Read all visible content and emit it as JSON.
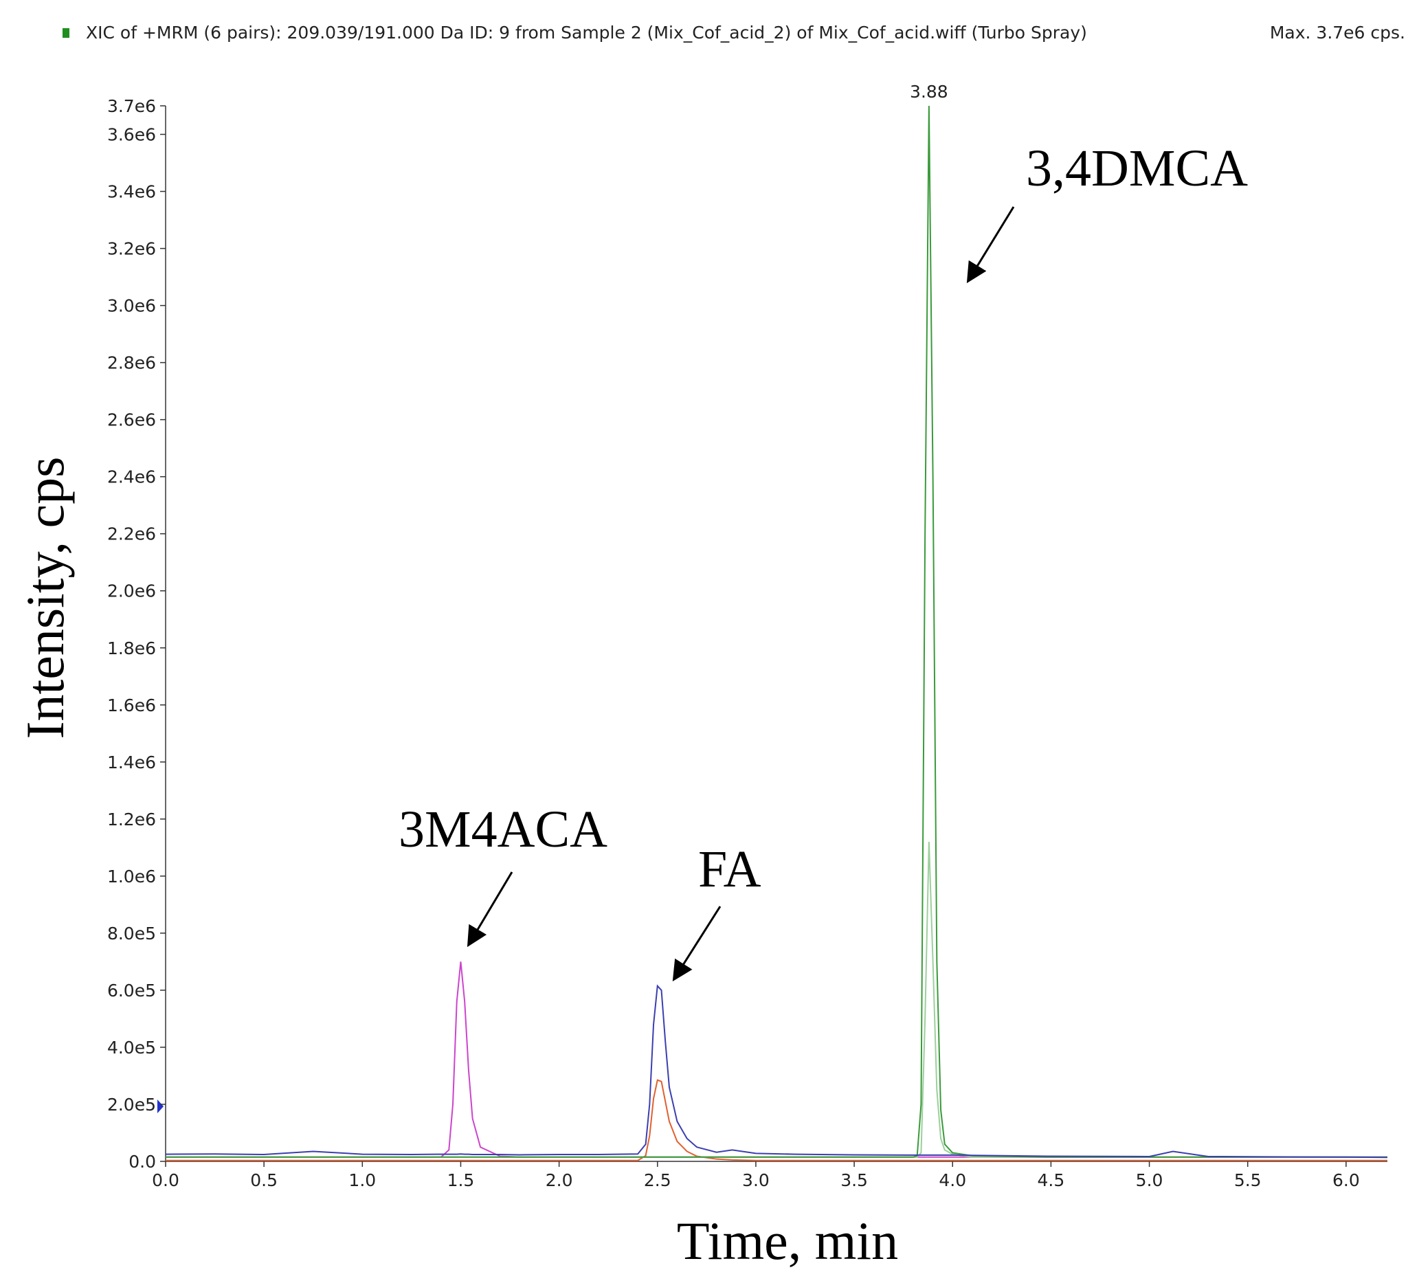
{
  "chart_data": {
    "type": "line",
    "title": "XIC of +MRM (6 pairs): 209.039/191.000 Da ID: 9 from Sample 2 (Mix_Cof_acid_2) of Mix_Cof_acid.wiff (Turbo Spray)",
    "subtitle": "Max. 3.7e6 cps.",
    "x_label": "Time, min",
    "y_label": "Intensity, cps",
    "annotations": [
      "3M4ACA",
      "FA",
      "3,4DMCA"
    ],
    "peak_label": 3.88,
    "x": [
      0,
      0.25,
      0.5,
      0.75,
      1.0,
      1.25,
      1.4,
      1.44,
      1.46,
      1.48,
      1.5,
      1.52,
      1.54,
      1.56,
      1.6,
      1.7,
      1.8,
      2.0,
      2.2,
      2.4,
      2.44,
      2.46,
      2.48,
      2.5,
      2.52,
      2.54,
      2.56,
      2.6,
      2.65,
      2.7,
      2.8,
      2.88,
      3.0,
      3.2,
      3.5,
      3.8,
      3.82,
      3.84,
      3.86,
      3.88,
      3.9,
      3.92,
      3.94,
      3.96,
      4.0,
      4.1,
      4.5,
      5.0,
      5.12,
      5.3,
      5.6,
      6.0,
      6.21
    ],
    "series": [
      {
        "color": "#cc44cc",
        "values": [
          15000,
          15000,
          15000,
          15000,
          15000,
          15000,
          15000,
          40000,
          200000,
          560000,
          700000,
          560000,
          320000,
          150000,
          50000,
          18000,
          15000,
          15000,
          15000,
          15000,
          15000,
          15000,
          15000,
          15000,
          15000,
          15000,
          15000,
          15000,
          15000,
          15000,
          15000,
          15000,
          15000,
          15000,
          15000,
          15000,
          15000,
          15000,
          15000,
          15000,
          15000,
          15000,
          15000,
          15000,
          15000,
          15000,
          15000,
          15000,
          15000,
          15000,
          15000,
          15000,
          15000
        ]
      },
      {
        "color": "#e06030",
        "values": [
          3000,
          3000,
          3000,
          3000,
          3000,
          3000,
          3000,
          3000,
          3000,
          3000,
          3000,
          3000,
          3000,
          3000,
          3000,
          3000,
          3000,
          3000,
          3000,
          3000,
          20000,
          90000,
          220000,
          285000,
          280000,
          210000,
          140000,
          70000,
          35000,
          18000,
          8000,
          5000,
          3000,
          3000,
          3000,
          3000,
          3000,
          3000,
          3000,
          3000,
          3000,
          3000,
          3000,
          3000,
          3000,
          3000,
          3000,
          3000,
          3000,
          3000,
          3000,
          3000,
          3000
        ]
      },
      {
        "color": "#9ccf9c",
        "values": [
          15000,
          15000,
          15000,
          15000,
          15000,
          15000,
          15000,
          15000,
          15000,
          15000,
          15000,
          15000,
          15000,
          15000,
          15000,
          15000,
          15000,
          15000,
          15000,
          15000,
          15000,
          15000,
          15000,
          15000,
          15000,
          15000,
          15000,
          15000,
          15000,
          15000,
          15000,
          15000,
          15000,
          15000,
          15000,
          15000,
          15000,
          30000,
          500000,
          1120000,
          700000,
          250000,
          80000,
          40000,
          25000,
          15000,
          15000,
          15000,
          15000,
          15000,
          15000,
          15000,
          15000
        ]
      },
      {
        "color": "#3a9a3a",
        "values": [
          15000,
          15000,
          15000,
          15000,
          15000,
          15000,
          15000,
          15000,
          15000,
          15000,
          15000,
          15000,
          15000,
          15000,
          15000,
          15000,
          15000,
          15000,
          15000,
          15000,
          15000,
          15000,
          15000,
          15000,
          15000,
          15000,
          15000,
          15000,
          15000,
          15000,
          15000,
          15000,
          15000,
          15000,
          15000,
          15000,
          20000,
          200000,
          2200000,
          3700000,
          2400000,
          700000,
          180000,
          60000,
          30000,
          20000,
          15000,
          15000,
          15000,
          15000,
          15000,
          15000,
          15000
        ]
      },
      {
        "color": "#3a3fb0",
        "values": [
          25000,
          26000,
          24000,
          35000,
          25000,
          24000,
          25000,
          25000,
          25000,
          25000,
          26000,
          25000,
          25000,
          24000,
          24000,
          24000,
          23000,
          24000,
          24000,
          26000,
          60000,
          200000,
          480000,
          615000,
          600000,
          420000,
          260000,
          140000,
          80000,
          50000,
          32000,
          40000,
          28000,
          25000,
          23000,
          22000,
          22000,
          22000,
          22000,
          22000,
          22000,
          22000,
          22000,
          22000,
          22000,
          21000,
          18000,
          17000,
          35000,
          17000,
          16000,
          15000,
          14000
        ]
      }
    ],
    "xlim": [
      0,
      6.21
    ],
    "ylim": [
      0,
      3700000
    ],
    "xticks": [
      {
        "value": 0,
        "label": "0.0"
      },
      0.5,
      {
        "value": 1,
        "label": "1.0"
      },
      1.5,
      {
        "value": 2,
        "label": "2.0"
      },
      2.5,
      {
        "value": 3,
        "label": "3.0"
      },
      3.5,
      {
        "value": 4,
        "label": "4.0"
      },
      4.5,
      {
        "value": 5,
        "label": "5.0"
      },
      5.5,
      {
        "value": 6,
        "label": "6.0"
      }
    ],
    "yticks": [
      {
        "value": 0,
        "label": "0.0"
      },
      {
        "value": 200000,
        "label": "2.0e5"
      },
      {
        "value": 400000,
        "label": "4.0e5"
      },
      {
        "value": 600000,
        "label": "6.0e5"
      },
      {
        "value": 800000,
        "label": "8.0e5"
      },
      {
        "value": 1000000,
        "label": "1.0e6"
      },
      {
        "value": 1200000,
        "label": "1.2e6"
      },
      {
        "value": 1400000,
        "label": "1.4e6"
      },
      {
        "value": 1600000,
        "label": "1.6e6"
      },
      {
        "value": 1800000,
        "label": "1.8e6"
      },
      {
        "value": 2000000,
        "label": "2.0e6"
      },
      {
        "value": 2200000,
        "label": "2.2e6"
      },
      {
        "value": 2400000,
        "label": "2.4e6"
      },
      {
        "value": 2600000,
        "label": "2.6e6"
      },
      {
        "value": 2800000,
        "label": "2.8e6"
      },
      {
        "value": 3000000,
        "label": "3.0e6"
      },
      {
        "value": 3200000,
        "label": "3.2e6"
      },
      {
        "value": 3400000,
        "label": "3.4e6"
      },
      {
        "value": 3600000,
        "label": "3.6e6"
      },
      {
        "value": 3700000,
        "label": "3.7e6"
      }
    ],
    "grid": false
  }
}
